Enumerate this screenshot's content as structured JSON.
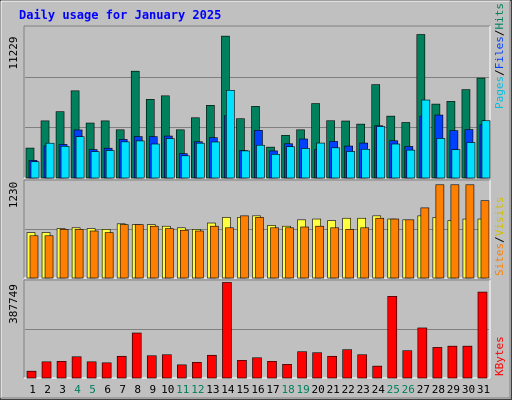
{
  "chart_data": [
    {
      "type": "bar",
      "title": "Daily usage for January 2025",
      "categories": [
        "1",
        "2",
        "3",
        "4",
        "5",
        "6",
        "7",
        "8",
        "9",
        "10",
        "11",
        "12",
        "13",
        "14",
        "15",
        "16",
        "17",
        "18",
        "19",
        "20",
        "21",
        "22",
        "23",
        "24",
        "25",
        "26",
        "27",
        "28",
        "29",
        "30",
        "31"
      ],
      "weekend_days": [
        "4",
        "5",
        "11",
        "12",
        "18",
        "19",
        "25",
        "26"
      ],
      "y_max_label": "11229",
      "ylim": [
        0,
        11229
      ],
      "grid": true,
      "axis_label": {
        "hits": "Hits",
        "files": "Files",
        "pages": "Pages",
        "separator": "/"
      },
      "colors": {
        "hits": "#00805c",
        "files": "#0040ff",
        "pages": "#00e0ff"
      },
      "series": [
        {
          "name": "Hits",
          "values": [
            2210,
            4220,
            4900,
            6440,
            4060,
            4220,
            3560,
            7890,
            5810,
            6070,
            3560,
            4450,
            5370,
            10480,
            4380,
            5290,
            2280,
            3150,
            3560,
            5500,
            4230,
            4210,
            3980,
            6900,
            4570,
            4100,
            10600,
            5460,
            5660,
            6530,
            7380
          ]
        },
        {
          "name": "Files",
          "values": [
            1300,
            2370,
            2480,
            3550,
            2100,
            2200,
            2850,
            3060,
            3060,
            3100,
            1800,
            2680,
            2980,
            4600,
            2030,
            3520,
            2000,
            2530,
            2880,
            2100,
            2700,
            2360,
            2580,
            3860,
            2750,
            2330,
            4570,
            4650,
            3500,
            3580,
            3930
          ]
        },
        {
          "name": "Pages",
          "values": [
            1200,
            2570,
            2340,
            3050,
            1950,
            2030,
            2670,
            2740,
            2510,
            2910,
            1640,
            2570,
            2660,
            6480,
            2000,
            2420,
            1750,
            2310,
            2180,
            2580,
            2230,
            1960,
            2120,
            3800,
            2510,
            2060,
            5760,
            2920,
            2090,
            2620,
            4230
          ]
        }
      ]
    },
    {
      "type": "bar",
      "categories": [
        "1",
        "2",
        "3",
        "4",
        "5",
        "6",
        "7",
        "8",
        "9",
        "10",
        "11",
        "12",
        "13",
        "14",
        "15",
        "16",
        "17",
        "18",
        "19",
        "20",
        "21",
        "22",
        "23",
        "24",
        "25",
        "26",
        "27",
        "28",
        "29",
        "30",
        "31"
      ],
      "y_max_label": "1230",
      "ylim": [
        0,
        1230
      ],
      "grid": true,
      "axis_label": {
        "sites": "Sites",
        "visits": "Visits",
        "separator": "/"
      },
      "colors": {
        "visits": "#ffff40",
        "sites": "#ff8000"
      },
      "series": [
        {
          "name": "Visits",
          "values": [
            570,
            570,
            620,
            630,
            620,
            610,
            680,
            670,
            670,
            650,
            630,
            610,
            690,
            760,
            760,
            780,
            660,
            650,
            730,
            740,
            720,
            750,
            750,
            780,
            740,
            730,
            780,
            760,
            720,
            740,
            740
          ]
        },
        {
          "name": "Sites",
          "values": [
            530,
            530,
            610,
            610,
            590,
            570,
            670,
            670,
            650,
            620,
            600,
            590,
            650,
            630,
            780,
            760,
            630,
            630,
            640,
            650,
            630,
            610,
            630,
            750,
            740,
            730,
            880,
            1170,
            1170,
            1170,
            970
          ]
        }
      ]
    },
    {
      "type": "bar",
      "categories": [
        "1",
        "2",
        "3",
        "4",
        "5",
        "6",
        "7",
        "8",
        "9",
        "10",
        "11",
        "12",
        "13",
        "14",
        "15",
        "16",
        "17",
        "18",
        "19",
        "20",
        "21",
        "22",
        "23",
        "24",
        "25",
        "26",
        "27",
        "28",
        "29",
        "30",
        "31"
      ],
      "y_max_label": "387749",
      "ylim": [
        0,
        387749
      ],
      "grid": true,
      "axis_label": {
        "kbytes": "KBytes"
      },
      "colors": {
        "kbytes": "#ff0000"
      },
      "series": [
        {
          "name": "KBytes",
          "values": [
            27000,
            64000,
            66000,
            84000,
            64000,
            60000,
            86000,
            178000,
            88000,
            92000,
            52000,
            62000,
            90000,
            378000,
            70000,
            80000,
            66000,
            54000,
            104000,
            100000,
            86000,
            112000,
            92000,
            47000,
            323000,
            108000,
            198000,
            121000,
            126000,
            126000,
            340000
          ]
        }
      ]
    }
  ]
}
